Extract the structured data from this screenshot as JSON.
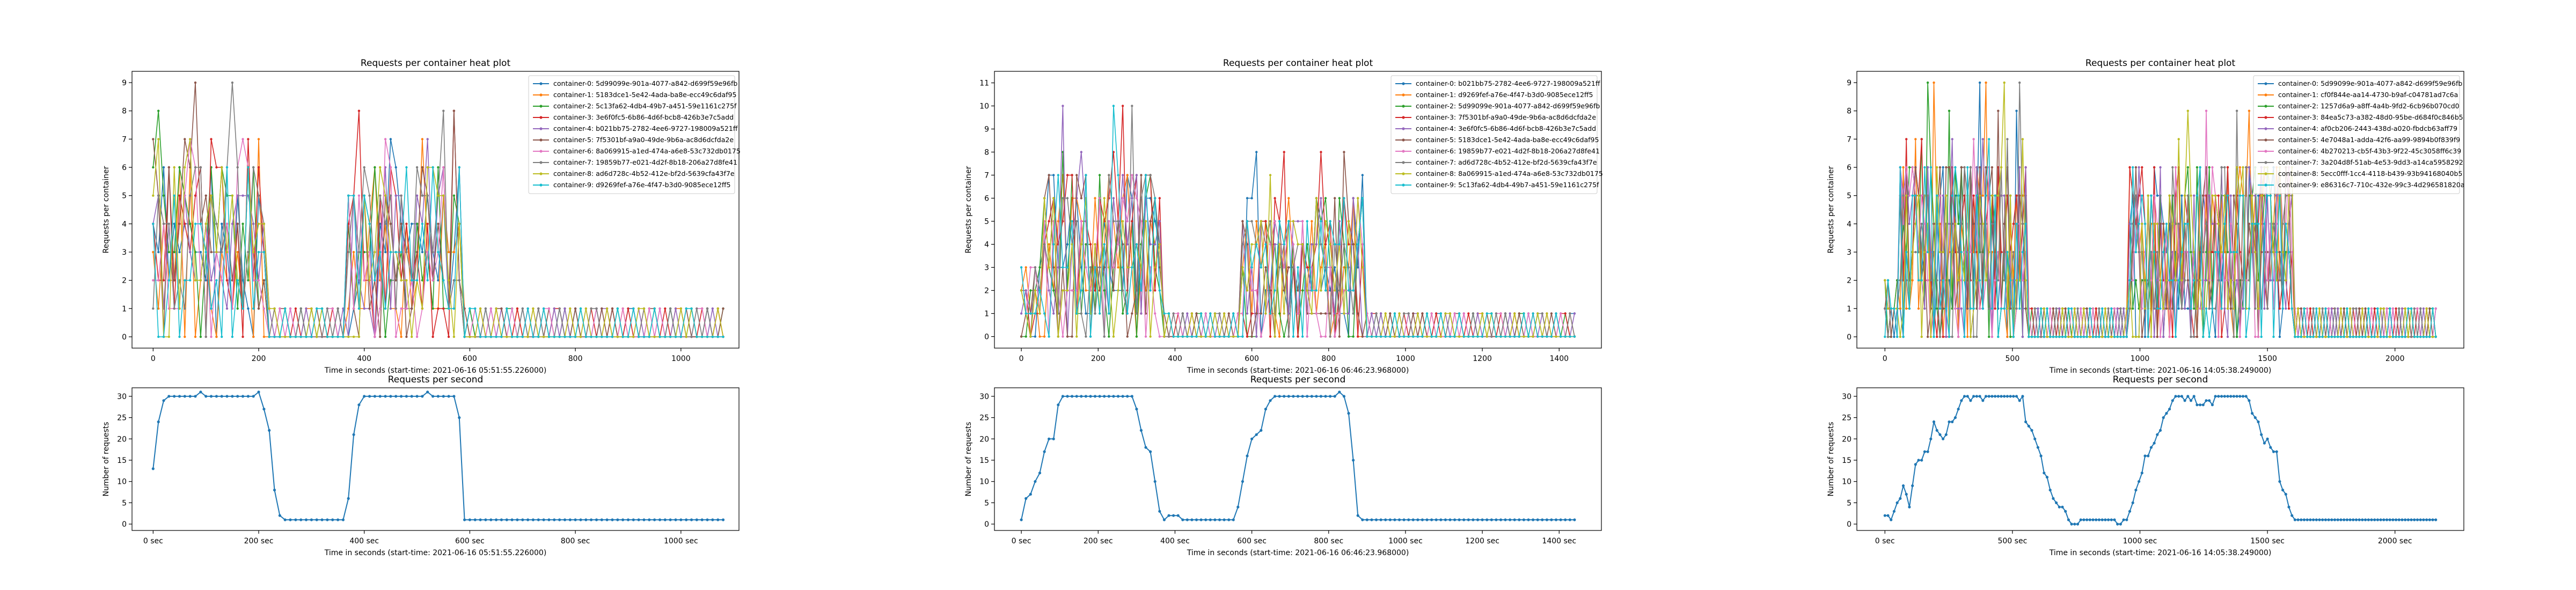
{
  "figure": {
    "colors": [
      "#1f77b4",
      "#ff7f0e",
      "#2ca02c",
      "#d62728",
      "#9467bd",
      "#8c564b",
      "#e377c2",
      "#7f7f7f",
      "#bcbd22",
      "#17becf"
    ]
  },
  "chart_data": [
    {
      "type": "line",
      "title": "Requests per container heat plot",
      "xlabel": "Time in seconds (start-time: 2021-06-16 05:51:55.226000)",
      "ylabel": "Requests per container",
      "xlim": [
        -40,
        1110
      ],
      "ylim": [
        -0.4,
        9.4
      ],
      "xticks": [
        0,
        200,
        400,
        600,
        800,
        1000
      ],
      "yticks": [
        0,
        1,
        2,
        3,
        4,
        5,
        6,
        7,
        8,
        9
      ],
      "grid": false,
      "legend": "top-right",
      "duration": 1080,
      "step": 10,
      "phases": [
        {
          "t0": 0,
          "t1": 220,
          "kind": "high",
          "lo": 0,
          "hi": 9
        },
        {
          "t0": 220,
          "t1": 370,
          "kind": "idle"
        },
        {
          "t0": 370,
          "t1": 590,
          "kind": "high",
          "lo": 0,
          "hi": 8
        },
        {
          "t0": 590,
          "t1": 1080,
          "kind": "idle"
        }
      ],
      "series": [
        {
          "name": "container-0: 5d99099e-901a-4077-a842-d699f59e96fb"
        },
        {
          "name": "container-1: 5183dce1-5e42-4ada-ba8e-ecc49c6daf95"
        },
        {
          "name": "container-2: 5c13fa62-4db4-49b7-a451-59e1161c275f"
        },
        {
          "name": "container-3: 3e6f0fc5-6b86-4d6f-bcb8-426b3e7c5add"
        },
        {
          "name": "container-4: b021bb75-2782-4ee6-9727-198009a521ff"
        },
        {
          "name": "container-5: 7f5301bf-a9a0-49de-9b6a-ac8d6dcfda2e"
        },
        {
          "name": "container-6: 8a069915-a1ed-474a-a6e8-53c732db0175"
        },
        {
          "name": "container-7: 19859b77-e021-4d2f-8b18-206a27d8fe41"
        },
        {
          "name": "container-8: ad6d728c-4b52-412e-bf2d-5639cfa43f7e"
        },
        {
          "name": "container-9: d9269fef-a76e-4f47-b3d0-9085ece12ff5"
        }
      ]
    },
    {
      "type": "line",
      "title": "Requests per second",
      "xlabel": "Time in seconds (start-time: 2021-06-16 05:51:55.226000)",
      "ylabel": "Number of requests",
      "xlim": [
        -40,
        1110
      ],
      "ylim": [
        -1.5,
        32
      ],
      "xticks": [
        0,
        200,
        400,
        600,
        800,
        1000
      ],
      "xtick_suffix": " sec",
      "yticks": [
        0,
        5,
        10,
        15,
        20,
        25,
        30
      ],
      "duration": 1080,
      "step": 10,
      "profile": [
        [
          0,
          13
        ],
        [
          10,
          24
        ],
        [
          20,
          29
        ],
        [
          30,
          30
        ],
        [
          150,
          30
        ],
        [
          160,
          29
        ],
        [
          170,
          31
        ],
        [
          200,
          30
        ],
        [
          210,
          28
        ],
        [
          220,
          22
        ],
        [
          230,
          7
        ],
        [
          240,
          2
        ],
        [
          250,
          1
        ],
        [
          360,
          1
        ],
        [
          370,
          6
        ],
        [
          380,
          20
        ],
        [
          390,
          28
        ],
        [
          400,
          30
        ],
        [
          570,
          30
        ],
        [
          580,
          26
        ],
        [
          590,
          1
        ],
        [
          1080,
          1
        ]
      ]
    },
    {
      "type": "line",
      "title": "Requests per container heat plot",
      "xlabel": "Time in seconds (start-time: 2021-06-16 06:46:23.968000)",
      "ylabel": "Requests per container",
      "xlim": [
        -70,
        1510
      ],
      "ylim": [
        -0.5,
        11.5
      ],
      "xticks": [
        0,
        200,
        400,
        600,
        800,
        1000,
        1200,
        1400
      ],
      "yticks": [
        0,
        1,
        2,
        3,
        4,
        5,
        6,
        7,
        8,
        9,
        10,
        11
      ],
      "legend": "top-right",
      "duration": 1440,
      "step": 12,
      "phases": [
        {
          "t0": 0,
          "t1": 50,
          "kind": "ramp",
          "lo": 0,
          "hi": 3
        },
        {
          "t0": 50,
          "t1": 370,
          "kind": "high",
          "lo": 0,
          "hi": 10
        },
        {
          "t0": 370,
          "t1": 570,
          "kind": "idle"
        },
        {
          "t0": 570,
          "t1": 900,
          "kind": "high",
          "lo": 0,
          "hi": 8
        },
        {
          "t0": 900,
          "t1": 1440,
          "kind": "idle"
        }
      ],
      "series": [
        {
          "name": "container-0: b021bb75-2782-4ee6-9727-198009a521ff"
        },
        {
          "name": "container-1: d9269fef-a76e-4f47-b3d0-9085ece12ff5"
        },
        {
          "name": "container-2: 5d99099e-901a-4077-a842-d699f59e96fb"
        },
        {
          "name": "container-3: 7f5301bf-a9a0-49de-9b6a-ac8d6dcfda2e"
        },
        {
          "name": "container-4: 3e6f0fc5-6b86-4d6f-bcb8-426b3e7c5add"
        },
        {
          "name": "container-5: 5183dce1-5e42-4ada-ba8e-ecc49c6daf95"
        },
        {
          "name": "container-6: 19859b77-e021-4d2f-8b18-206a27d8fe41"
        },
        {
          "name": "container-7: ad6d728c-4b52-412e-bf2d-5639cfa43f7e"
        },
        {
          "name": "container-8: 8a069915-a1ed-474a-a6e8-53c732db0175"
        },
        {
          "name": "container-9: 5c13fa62-4db4-49b7-a451-59e1161c275f"
        }
      ]
    },
    {
      "type": "line",
      "title": "Requests per second",
      "xlabel": "Time in seconds (start-time: 2021-06-16 06:46:23.968000)",
      "ylabel": "Number of requests",
      "xlim": [
        -70,
        1510
      ],
      "ylim": [
        -1.5,
        32
      ],
      "xticks": [
        0,
        200,
        400,
        600,
        800,
        1000,
        1200,
        1400
      ],
      "xtick_suffix": " sec",
      "yticks": [
        0,
        5,
        10,
        15,
        20,
        25,
        30
      ],
      "duration": 1440,
      "step": 12,
      "profile": [
        [
          0,
          1
        ],
        [
          12,
          6
        ],
        [
          36,
          9
        ],
        [
          48,
          12
        ],
        [
          72,
          21
        ],
        [
          84,
          19
        ],
        [
          96,
          27
        ],
        [
          108,
          30
        ],
        [
          290,
          30
        ],
        [
          300,
          27
        ],
        [
          320,
          19
        ],
        [
          340,
          15
        ],
        [
          360,
          3
        ],
        [
          372,
          1
        ],
        [
          396,
          2
        ],
        [
          420,
          1
        ],
        [
          550,
          1
        ],
        [
          562,
          3
        ],
        [
          580,
          12
        ],
        [
          600,
          20
        ],
        [
          620,
          22
        ],
        [
          640,
          27
        ],
        [
          660,
          30
        ],
        [
          840,
          30
        ],
        [
          852,
          27
        ],
        [
          864,
          15
        ],
        [
          876,
          2
        ],
        [
          888,
          1
        ],
        [
          1440,
          1
        ]
      ]
    },
    {
      "type": "line",
      "title": "Requests per container heat plot",
      "xlabel": "Time in seconds (start-time: 2021-06-16 14:05:38.249000)",
      "ylabel": "Requests per container",
      "xlim": [
        -110,
        2270
      ],
      "ylim": [
        -0.4,
        9.4
      ],
      "xticks": [
        0,
        500,
        1000,
        1500,
        2000
      ],
      "yticks": [
        0,
        1,
        2,
        3,
        4,
        5,
        6,
        7,
        8,
        9
      ],
      "legend": "top-right",
      "duration": 2160,
      "step": 12,
      "phases": [
        {
          "t0": 0,
          "t1": 60,
          "kind": "ramp",
          "lo": 0,
          "hi": 2
        },
        {
          "t0": 60,
          "t1": 560,
          "kind": "high",
          "lo": 0,
          "hi": 9
        },
        {
          "t0": 560,
          "t1": 960,
          "kind": "idle"
        },
        {
          "t0": 960,
          "t1": 1600,
          "kind": "high",
          "lo": 0,
          "hi": 8
        },
        {
          "t0": 1600,
          "t1": 2160,
          "kind": "idle"
        }
      ],
      "series": [
        {
          "name": "container-0: 5d99099e-901a-4077-a842-d699f59e96fb"
        },
        {
          "name": "container-1: cf0f844e-aa14-4730-b9af-c04781ad7c6a"
        },
        {
          "name": "container-2: 1257d6a9-a8ff-4a4b-9fd2-6cb96b070cd0"
        },
        {
          "name": "container-3: 84ea5c73-a382-48d0-95be-d684f0c846b5"
        },
        {
          "name": "container-4: af0cb206-2443-438d-a020-fbdcb63aff79"
        },
        {
          "name": "container-5: 4e7048a1-adda-42f6-aa99-9894b0f839f9"
        },
        {
          "name": "container-6: 4b270213-cb5f-43b3-9f22-45c3058ff6c39"
        },
        {
          "name": "container-7: 3a204d8f-51ab-4e53-9dd3-a14ca5958292"
        },
        {
          "name": "container-8: 5ecc0fff-1cc4-4118-b439-93b94168040b5"
        },
        {
          "name": "container-9: e86316c7-710c-432e-99c3-4d296581820a"
        }
      ]
    },
    {
      "type": "line",
      "title": "Requests per second",
      "xlabel": "Time in seconds (start-time: 2021-06-16 14:05:38.249000)",
      "ylabel": "Number of requests",
      "xlim": [
        -110,
        2270
      ],
      "ylim": [
        -1.5,
        32
      ],
      "xticks": [
        0,
        500,
        1000,
        1500,
        2000
      ],
      "xtick_suffix": " sec",
      "yticks": [
        0,
        5,
        10,
        15,
        20,
        25,
        30
      ],
      "duration": 2160,
      "step": 12,
      "profile": [
        [
          0,
          2
        ],
        [
          24,
          1
        ],
        [
          48,
          5
        ],
        [
          72,
          8
        ],
        [
          96,
          4
        ],
        [
          120,
          14
        ],
        [
          168,
          17
        ],
        [
          192,
          24
        ],
        [
          216,
          20
        ],
        [
          264,
          24
        ],
        [
          288,
          28
        ],
        [
          312,
          30
        ],
        [
          540,
          30
        ],
        [
          552,
          25
        ],
        [
          576,
          22
        ],
        [
          600,
          19
        ],
        [
          624,
          12
        ],
        [
          660,
          7
        ],
        [
          700,
          3
        ],
        [
          730,
          0
        ],
        [
          800,
          1
        ],
        [
          880,
          1
        ],
        [
          920,
          0
        ],
        [
          950,
          1
        ],
        [
          980,
          8
        ],
        [
          1020,
          15
        ],
        [
          1060,
          20
        ],
        [
          1100,
          26
        ],
        [
          1140,
          30
        ],
        [
          1260,
          28
        ],
        [
          1320,
          30
        ],
        [
          1420,
          30
        ],
        [
          1450,
          25
        ],
        [
          1480,
          20
        ],
        [
          1530,
          18
        ],
        [
          1550,
          10
        ],
        [
          1570,
          7
        ],
        [
          1600,
          1
        ],
        [
          2160,
          1
        ]
      ]
    }
  ]
}
